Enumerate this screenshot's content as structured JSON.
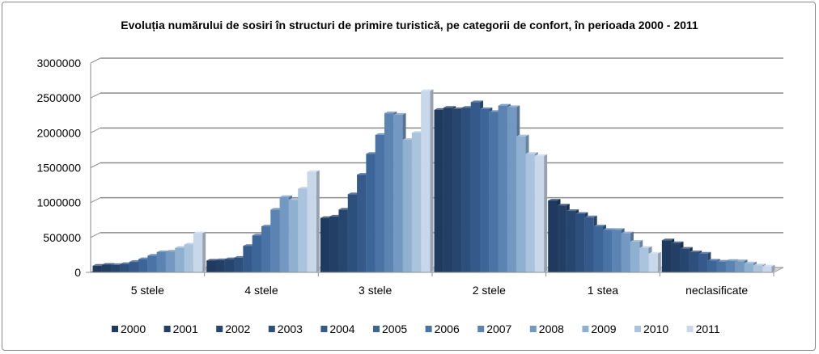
{
  "chart_data": {
    "type": "bar",
    "title": "Evoluția numărului de sosiri în structuri de primire turistică, pe categorii de confort, în perioada 2000 - 2011",
    "xlabel": "",
    "ylabel": "",
    "ylim": [
      0,
      3000000
    ],
    "yticks": [
      "0",
      "500000",
      "1000000",
      "1500000",
      "2000000",
      "2500000",
      "3000000"
    ],
    "grid": true,
    "legend_position": "bottom",
    "categories": [
      "5 stele",
      "4 stele",
      "3 stele",
      "2 stele",
      "1 stea",
      "neclasificate"
    ],
    "series": [
      {
        "name": "2000",
        "color": "#1f3a5f",
        "values": [
          95000,
          170000,
          780000,
          2330000,
          1030000,
          460000
        ]
      },
      {
        "name": "2001",
        "color": "#233f66",
        "values": [
          110000,
          175000,
          800000,
          2360000,
          960000,
          420000
        ]
      },
      {
        "name": "2002",
        "color": "#27466f",
        "values": [
          105000,
          190000,
          900000,
          2340000,
          880000,
          340000
        ]
      },
      {
        "name": "2003",
        "color": "#2c4f7c",
        "values": [
          120000,
          210000,
          1120000,
          2360000,
          840000,
          290000
        ]
      },
      {
        "name": "2004",
        "color": "#34598a",
        "values": [
          150000,
          380000,
          1400000,
          2440000,
          790000,
          270000
        ]
      },
      {
        "name": "2005",
        "color": "#3d6698",
        "values": [
          190000,
          530000,
          1700000,
          2340000,
          660000,
          170000
        ]
      },
      {
        "name": "2006",
        "color": "#4a74a6",
        "values": [
          240000,
          660000,
          1970000,
          2300000,
          610000,
          155000
        ]
      },
      {
        "name": "2007",
        "color": "#5b84b3",
        "values": [
          290000,
          900000,
          2280000,
          2390000,
          610000,
          165000
        ]
      },
      {
        "name": "2008",
        "color": "#7398c1",
        "values": [
          300000,
          1080000,
          2260000,
          2370000,
          560000,
          160000
        ]
      },
      {
        "name": "2009",
        "color": "#8fb0d1",
        "values": [
          350000,
          1040000,
          1900000,
          1950000,
          440000,
          130000
        ]
      },
      {
        "name": "2010",
        "color": "#aac4de",
        "values": [
          400000,
          1200000,
          2000000,
          1700000,
          350000,
          100000
        ]
      },
      {
        "name": "2011",
        "color": "#c8d8ea",
        "values": [
          560000,
          1440000,
          2600000,
          1670000,
          270000,
          85000
        ]
      }
    ]
  }
}
